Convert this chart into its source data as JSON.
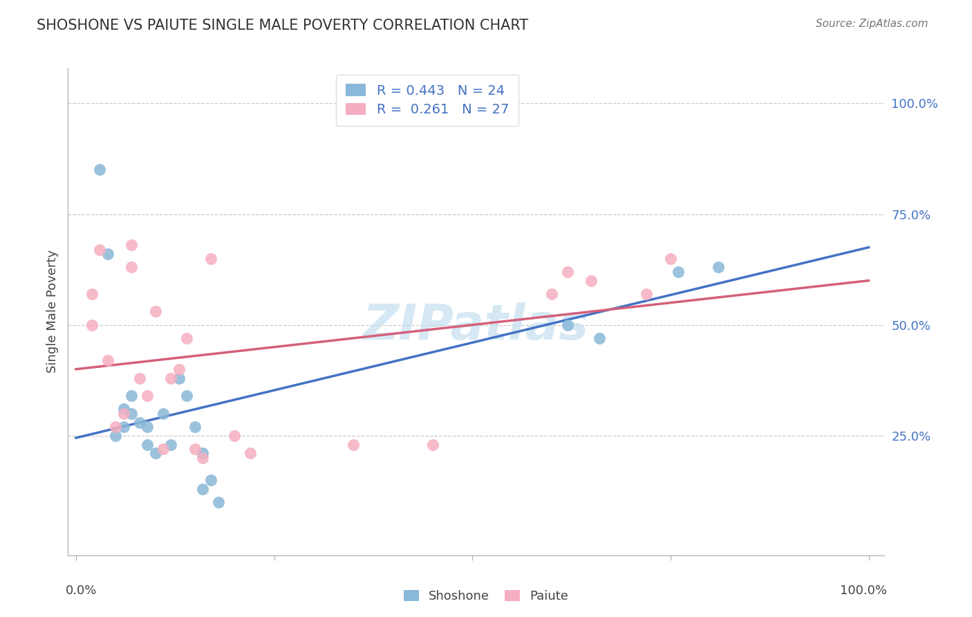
{
  "title": "SHOSHONE VS PAIUTE SINGLE MALE POVERTY CORRELATION CHART",
  "source": "Source: ZipAtlas.com",
  "ylabel": "Single Male Poverty",
  "shoshone_R": 0.443,
  "shoshone_N": 24,
  "paiute_R": 0.261,
  "paiute_N": 27,
  "shoshone_color": "#8ab8d8",
  "paiute_color": "#f5aec0",
  "shoshone_line_color": "#4472c4",
  "paiute_line_color": "#d4607a",
  "legend_color": "#4472c4",
  "watermark": "ZIPatlas",
  "watermark_color": "#c5dff0",
  "ytick_values": [
    0.25,
    0.5,
    0.75,
    1.0
  ],
  "ytick_labels": [
    "25.0%",
    "50.0%",
    "75.0%",
    "100.0%"
  ],
  "shoshone_x": [
    0.03,
    0.04,
    0.05,
    0.06,
    0.06,
    0.07,
    0.07,
    0.08,
    0.09,
    0.09,
    0.1,
    0.11,
    0.12,
    0.13,
    0.14,
    0.15,
    0.16,
    0.16,
    0.17,
    0.18,
    0.62,
    0.66,
    0.76,
    0.81
  ],
  "shoshone_y": [
    0.85,
    0.66,
    0.25,
    0.27,
    0.31,
    0.3,
    0.34,
    0.28,
    0.23,
    0.27,
    0.21,
    0.3,
    0.23,
    0.38,
    0.34,
    0.27,
    0.13,
    0.21,
    0.15,
    0.1,
    0.5,
    0.47,
    0.62,
    0.63
  ],
  "paiute_x": [
    0.02,
    0.02,
    0.03,
    0.04,
    0.05,
    0.06,
    0.07,
    0.07,
    0.08,
    0.09,
    0.1,
    0.11,
    0.12,
    0.13,
    0.14,
    0.15,
    0.16,
    0.17,
    0.2,
    0.22,
    0.35,
    0.45,
    0.6,
    0.62,
    0.65,
    0.72,
    0.75
  ],
  "paiute_y": [
    0.57,
    0.5,
    0.67,
    0.42,
    0.27,
    0.3,
    0.63,
    0.68,
    0.38,
    0.34,
    0.53,
    0.22,
    0.38,
    0.4,
    0.47,
    0.22,
    0.2,
    0.65,
    0.25,
    0.21,
    0.23,
    0.23,
    0.57,
    0.62,
    0.6,
    0.57,
    0.65
  ],
  "line_intercept_blue": 0.245,
  "line_slope_blue": 0.43,
  "line_intercept_pink": 0.4,
  "line_slope_pink": 0.2
}
